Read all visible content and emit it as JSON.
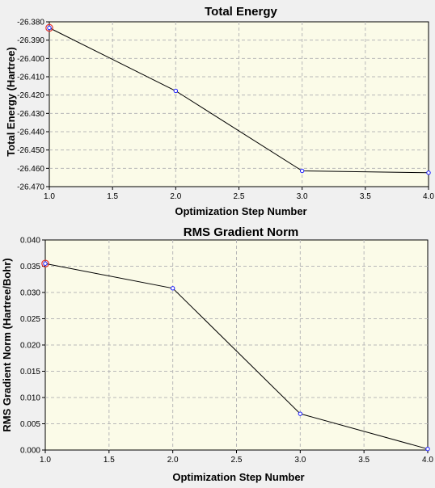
{
  "chart_data": [
    {
      "type": "line",
      "title": "Total Energy",
      "xlabel": "Optimization Step Number",
      "ylabel": "Total Energy (Hartree)",
      "xlim": [
        1.0,
        4.0
      ],
      "ylim": [
        -26.47,
        -26.38
      ],
      "xticks": [
        "1.0",
        "1.5",
        "2.0",
        "2.5",
        "3.0",
        "3.5",
        "4.0"
      ],
      "yticks": [
        "-26.380",
        "-26.390",
        "-26.400",
        "-26.410",
        "-26.420",
        "-26.430",
        "-26.440",
        "-26.450",
        "-26.460",
        "-26.470"
      ],
      "grid": true,
      "x": [
        1,
        2,
        3,
        4
      ],
      "values": [
        -26.3833,
        -26.4177,
        -26.4614,
        -26.4624
      ],
      "highlight_index": 0
    },
    {
      "type": "line",
      "title": "RMS Gradient Norm",
      "xlabel": "Optimization Step Number",
      "ylabel": "RMS Gradient Norm (Hartree/Bohr)",
      "xlim": [
        1.0,
        4.0
      ],
      "ylim": [
        0.0,
        0.04
      ],
      "xticks": [
        "1.0",
        "1.5",
        "2.0",
        "2.5",
        "3.0",
        "3.5",
        "4.0"
      ],
      "yticks": [
        "0.040",
        "0.035",
        "0.030",
        "0.025",
        "0.020",
        "0.015",
        "0.010",
        "0.005",
        "0.000"
      ],
      "grid": true,
      "x": [
        1,
        2,
        3,
        4
      ],
      "values": [
        0.0355,
        0.0308,
        0.0069,
        0.0002
      ],
      "highlight_index": 0
    }
  ]
}
